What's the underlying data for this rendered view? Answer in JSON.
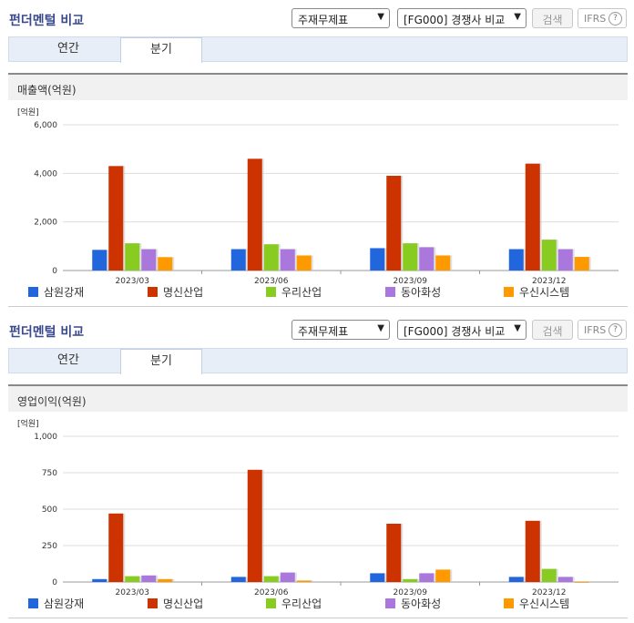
{
  "panels": [
    {
      "title": "펀더멘털 비교",
      "select1": "주재무제표",
      "select2": "[FG000] 경쟁사 비교",
      "search_label": "검색",
      "ifrs_label": "IFRS",
      "help_glyph": "?",
      "tabs": [
        {
          "label": "연간"
        },
        {
          "label": "분기"
        }
      ],
      "active_tab": "분기",
      "section_title": "매출액(억원)"
    },
    {
      "title": "펀더멘털 비교",
      "select1": "주재무제표",
      "select2": "[FG000] 경쟁사 비교",
      "search_label": "검색",
      "ifrs_label": "IFRS",
      "help_glyph": "?",
      "tabs": [
        {
          "label": "연간"
        },
        {
          "label": "분기"
        }
      ],
      "active_tab": "분기",
      "section_title": "영업이익(억원)"
    }
  ],
  "chart_data": [
    {
      "type": "bar",
      "unit_label": "[억원]",
      "categories": [
        "2023/03",
        "2023/06",
        "2023/09",
        "2023/12"
      ],
      "ylim": [
        0,
        6000
      ],
      "yticks": [
        0,
        2000,
        4000,
        6000
      ],
      "ytick_labels": [
        "0",
        "2,000",
        "4,000",
        "6,000"
      ],
      "legend_position": "bottom",
      "series": [
        {
          "name": "삼원강재",
          "color": "#2266dd",
          "values": [
            850,
            880,
            920,
            880
          ]
        },
        {
          "name": "명신산업",
          "color": "#cc3300",
          "values": [
            4300,
            4600,
            3900,
            4400
          ]
        },
        {
          "name": "우리산업",
          "color": "#88cc22",
          "values": [
            1120,
            1080,
            1120,
            1270
          ]
        },
        {
          "name": "동아화성",
          "color": "#aa77dd",
          "values": [
            880,
            880,
            960,
            880
          ]
        },
        {
          "name": "우신시스템",
          "color": "#ff9900",
          "values": [
            550,
            620,
            620,
            560
          ]
        }
      ]
    },
    {
      "type": "bar",
      "unit_label": "[억원]",
      "categories": [
        "2023/03",
        "2023/06",
        "2023/09",
        "2023/12"
      ],
      "ylim": [
        0,
        1000
      ],
      "yticks": [
        0,
        250,
        500,
        750,
        1000
      ],
      "ytick_labels": [
        "0",
        "250",
        "500",
        "750",
        "1,000"
      ],
      "legend_position": "bottom",
      "series": [
        {
          "name": "삼원강재",
          "color": "#2266dd",
          "values": [
            20,
            35,
            60,
            35
          ]
        },
        {
          "name": "명신산업",
          "color": "#cc3300",
          "values": [
            470,
            770,
            400,
            420
          ]
        },
        {
          "name": "우리산업",
          "color": "#88cc22",
          "values": [
            40,
            40,
            20,
            90
          ]
        },
        {
          "name": "동아화성",
          "color": "#aa77dd",
          "values": [
            45,
            65,
            60,
            35
          ]
        },
        {
          "name": "우신시스템",
          "color": "#ff9900",
          "values": [
            20,
            10,
            85,
            -5
          ]
        }
      ]
    }
  ]
}
